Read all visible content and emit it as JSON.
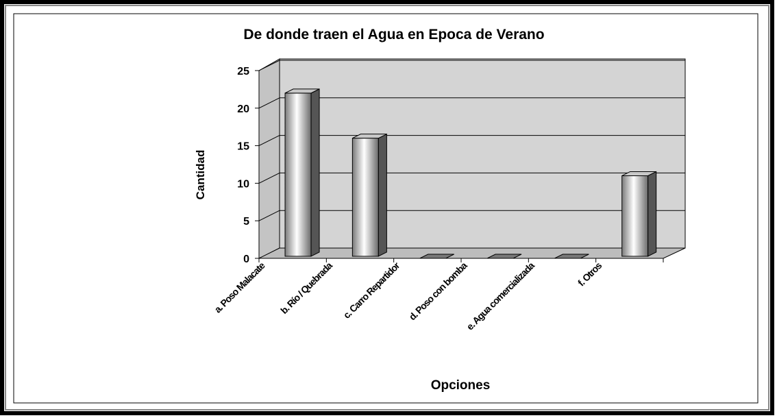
{
  "chart_data": {
    "type": "bar3d",
    "title": "De donde traen el Agua en Epoca de Verano",
    "categories": [
      "a. Poso Malacate",
      "b. Río / Quebrada",
      "c. Carro Repartidor",
      "d. Poso con bomba",
      "e. Agua comercializada",
      "f. Otros"
    ],
    "values": [
      22,
      16,
      0,
      0,
      0,
      11
    ],
    "color": "#c8c8c8",
    "ylim": [
      0,
      25
    ],
    "yticks": [
      0,
      5,
      10,
      15,
      20,
      25
    ],
    "grid": true,
    "x_label": "Opciones",
    "y_label": "Cantidad"
  }
}
